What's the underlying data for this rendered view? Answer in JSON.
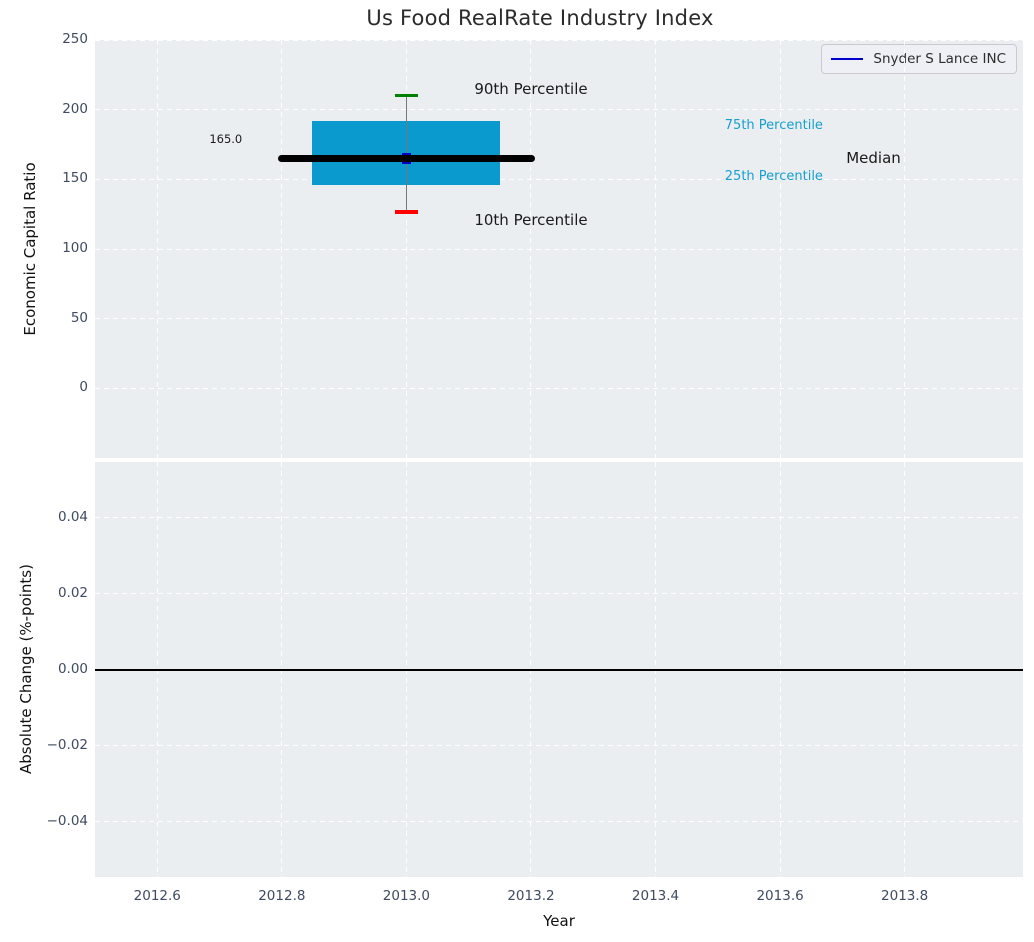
{
  "figure": {
    "title": "Us Food RealRate Industry Index",
    "xlabel": "Year",
    "legend": {
      "label": "Snyder S Lance INC",
      "line_color": "#0000cc"
    }
  },
  "colors": {
    "plot_bg": "#eaeef0",
    "grid": "#ffffff",
    "tick_text": "#3f4b60",
    "box_fill": "#0a9acd",
    "median_line": "#000000",
    "whisker": "#777777",
    "cap_90": "#008000",
    "cap_10": "#ff0000",
    "marker": "#0000cc",
    "zero_line": "#000000",
    "percentile_label": "#179fd0",
    "annotation_text": "#1a1a1a"
  },
  "chart_data": [
    {
      "type": "boxplot",
      "title": "Us Food RealRate Industry Index",
      "ylabel": "Economic Capital Ratio",
      "xlim": [
        2012.5,
        2013.99
      ],
      "ylim": [
        -50,
        250
      ],
      "grid": true,
      "legend_position": "upper right",
      "yticks": [
        {
          "v": 250,
          "label": "250"
        },
        {
          "v": 200,
          "label": "200"
        },
        {
          "v": 150,
          "label": "150"
        },
        {
          "v": 100,
          "label": "100"
        },
        {
          "v": 50,
          "label": "50"
        },
        {
          "v": 0,
          "label": "0"
        }
      ],
      "series": [
        {
          "name": "Snyder S Lance INC",
          "x": [
            2013.0
          ],
          "y": [
            165.0
          ],
          "color": "#0000cc"
        }
      ],
      "boxes": [
        {
          "x": 2013.0,
          "p10": 126.5,
          "p25": 146,
          "median": 165,
          "p75": 192,
          "p90": 210,
          "company_value": 165.0,
          "value_label": "165.0",
          "box_half_width": 0.151,
          "median_half_width": 0.206,
          "cap_half_width": 0.018
        }
      ],
      "annotations": [
        {
          "text": "90th Percentile",
          "x": 2013.2,
          "y": 215,
          "color": "#1a1a1a",
          "size": 15
        },
        {
          "text": "10th Percentile",
          "x": 2013.2,
          "y": 121,
          "color": "#1a1a1a",
          "size": 15
        },
        {
          "text": "75th Percentile",
          "x": 2013.59,
          "y": 188,
          "color": "#179fd0",
          "size": 13
        },
        {
          "text": "25th Percentile",
          "x": 2013.59,
          "y": 152,
          "color": "#179fd0",
          "size": 13
        },
        {
          "text": "Median",
          "x": 2013.75,
          "y": 165,
          "color": "#1a1a1a",
          "size": 15
        },
        {
          "text": "165.0",
          "x": 2012.71,
          "y": 178,
          "color": "#1a1a1a",
          "size": 11.5
        }
      ]
    },
    {
      "type": "line",
      "ylabel": "Absolute Change (%-points)",
      "xlabel": "Year",
      "xlim": [
        2012.5,
        2013.99
      ],
      "ylim": [
        -0.0545,
        0.0547
      ],
      "grid": true,
      "zero_line": 0.0,
      "series": [],
      "yticks": [
        {
          "v": 0.04,
          "label": "0.04"
        },
        {
          "v": 0.02,
          "label": "0.02"
        },
        {
          "v": 0.0,
          "label": "0.00"
        },
        {
          "v": -0.02,
          "label": "−0.02"
        },
        {
          "v": -0.04,
          "label": "−0.04"
        }
      ],
      "xticks": [
        {
          "v": 2012.6,
          "label": "2012.6"
        },
        {
          "v": 2012.8,
          "label": "2012.8"
        },
        {
          "v": 2013.0,
          "label": "2013.0"
        },
        {
          "v": 2013.2,
          "label": "2013.2"
        },
        {
          "v": 2013.4,
          "label": "2013.4"
        },
        {
          "v": 2013.6,
          "label": "2013.6"
        },
        {
          "v": 2013.8,
          "label": "2013.8"
        }
      ]
    }
  ]
}
